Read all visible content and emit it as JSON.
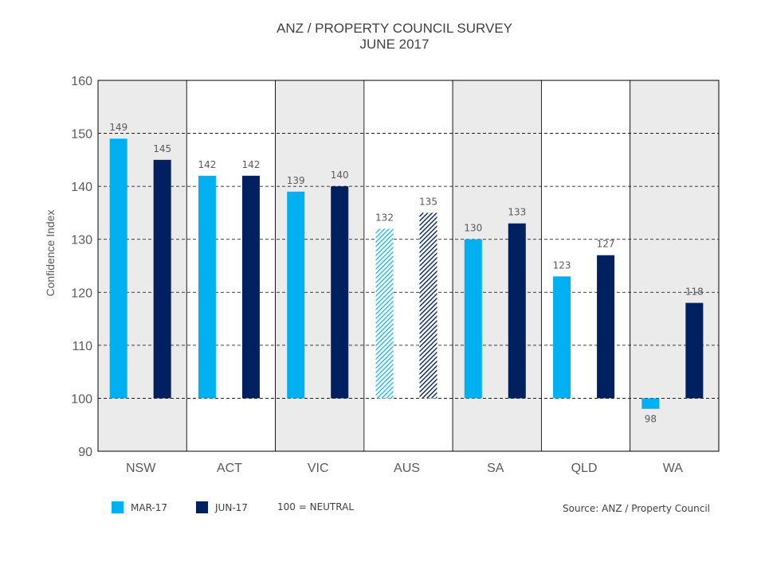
{
  "title_line1": "ANZ / PROPERTY COUNCIL SURVEY",
  "title_line2": "JUNE 2017",
  "source": "Source: ANZ / Property Council",
  "legend": {
    "mar": "MAR-17",
    "jun": "JUN-17",
    "neutral": "100 = NEUTRAL"
  },
  "colors": {
    "mar": "#00b0f0",
    "jun": "#002060",
    "band_shaded": "#ebebeb",
    "band_light": "#ffffff",
    "grid": "#000000",
    "text": "#595959"
  },
  "chart_data": {
    "type": "bar",
    "title": "ANZ / PROPERTY COUNCIL SURVEY JUNE 2017",
    "xlabel": "",
    "ylabel": "Confidence Index",
    "ylim": [
      90,
      160
    ],
    "yticks": [
      90,
      100,
      110,
      120,
      130,
      140,
      150,
      160
    ],
    "baseline": 100,
    "categories": [
      "NSW",
      "ACT",
      "VIC",
      "AUS",
      "SA",
      "QLD",
      "WA"
    ],
    "series": [
      {
        "name": "MAR-17",
        "values": [
          149,
          142,
          139,
          132,
          130,
          123,
          98
        ],
        "labels": [
          "149",
          "142",
          "139",
          "132",
          "130",
          "123",
          "98"
        ]
      },
      {
        "name": "JUN-17",
        "values": [
          145,
          142,
          140,
          135,
          133,
          127,
          118
        ],
        "labels": [
          "145",
          "142",
          "140",
          "135",
          "133",
          "127",
          "118"
        ]
      }
    ],
    "band_shaded": [
      true,
      false,
      true,
      false,
      true,
      false,
      true
    ],
    "hatched_category": "AUS",
    "grid": true,
    "legend_position": "bottom-left"
  }
}
